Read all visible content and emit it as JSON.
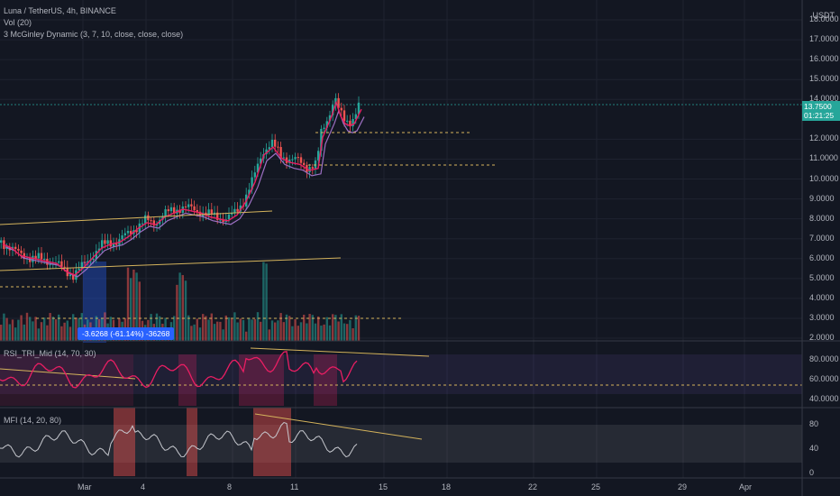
{
  "legend": {
    "symbol": "Luna / TetherUS, 4h, BINANCE",
    "vol": "Vol (20)",
    "mcginley": "3 McGinley Dynamic (3, 7, 10, close, close, close)",
    "rsi": "RSI_TRI_Mid (14, 70, 30)",
    "mfi": "MFI (14, 20, 80)"
  },
  "axis": {
    "currency": "USDT",
    "price_ticks": [
      "18.0000",
      "17.0000",
      "16.0000",
      "15.0000",
      "14.0000",
      "12.0000",
      "11.0000",
      "10.0000",
      "9.0000",
      "8.0000",
      "7.0000",
      "6.0000",
      "5.0000",
      "4.0000",
      "3.0000",
      "2.0000"
    ],
    "rsi_ticks": [
      "80.0000",
      "60.0000",
      "40.0000"
    ],
    "mfi_ticks": [
      "80",
      "40",
      "0"
    ],
    "time_ticks": [
      "Mar",
      "4",
      "8",
      "11",
      "15",
      "18",
      "22",
      "25",
      "29",
      "Apr"
    ]
  },
  "last_price": {
    "value": "13.7500",
    "countdown": "01:21:25"
  },
  "measure_label": "-3.6268 (-61.14%) -36268",
  "colors": {
    "up": "#26a69a",
    "down": "#ef5350",
    "bg": "#131722",
    "grid": "#2a2e39",
    "trend": "#d4b35c",
    "rsi": "#e91e63",
    "mcg": "#9c6fc3"
  }
}
